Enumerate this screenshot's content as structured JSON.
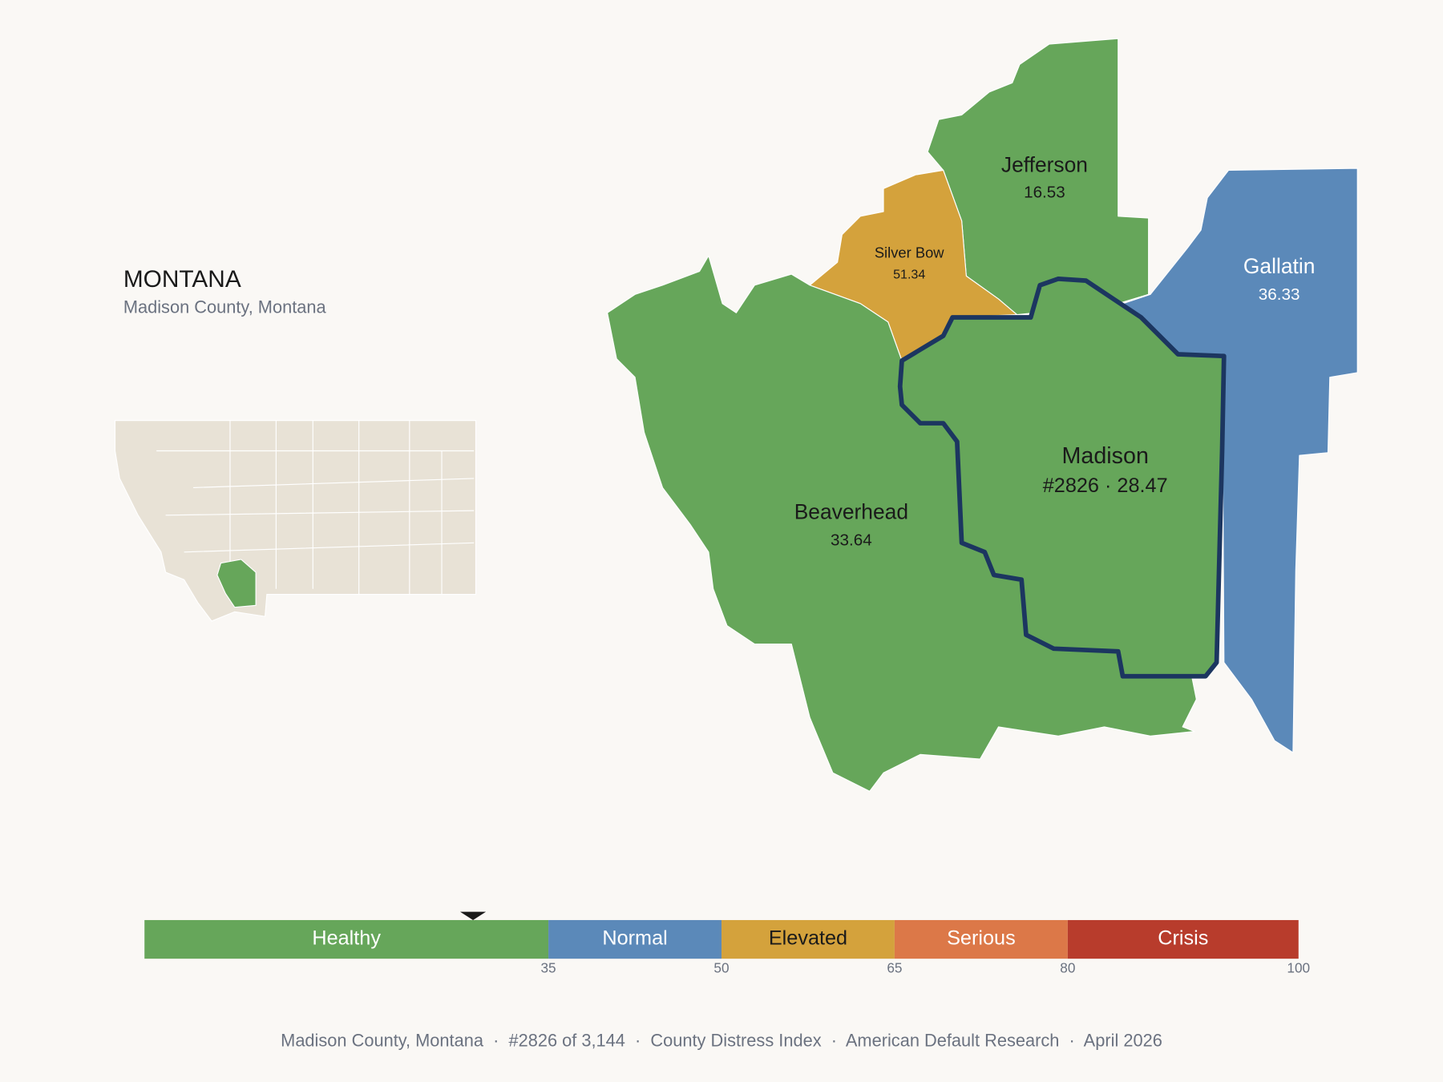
{
  "title": "MONTANA",
  "subtitle": "Madison County, Montana",
  "counties": [
    {
      "name": "Jefferson",
      "value": 16.53
    },
    {
      "name": "Silver Bow",
      "value": 51.34
    },
    {
      "name": "Gallatin",
      "value": 36.33
    },
    {
      "name": "Beaverhead",
      "value": 33.64
    },
    {
      "name": "Madison",
      "value": 28.47,
      "value_label": "#2826 · 28.47",
      "outline": "#1c3660"
    }
  ],
  "scale": {
    "range": [
      0,
      100
    ],
    "ticks": [
      35,
      50,
      65,
      80,
      100
    ],
    "bands": [
      {
        "label": "Healthy",
        "color": "#66a65a"
      },
      {
        "label": "Normal",
        "color": "#5b89b9"
      },
      {
        "label": "Elevated",
        "color": "#d4a23c"
      },
      {
        "label": "Serious",
        "color": "#dc7848"
      },
      {
        "label": "Crisis",
        "color": "#b83c2c"
      }
    ]
  },
  "footer": "Madison County, Montana  ·  #2826 of 3,144  ·  County Distress Index  ·  American Default Research  ·  April 2026"
}
